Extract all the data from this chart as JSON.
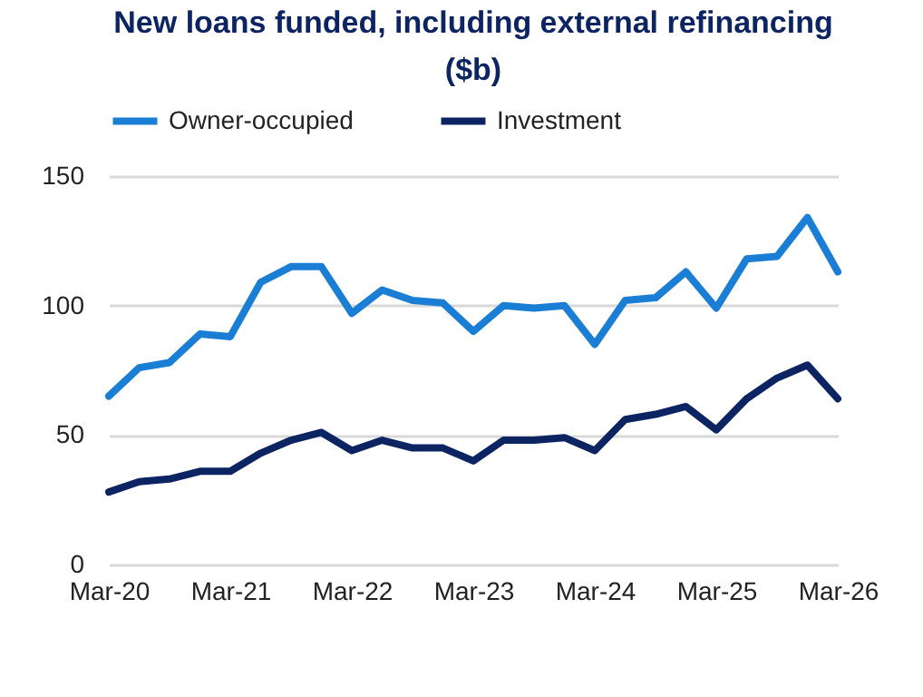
{
  "chart_data": {
    "type": "line",
    "title": "New loans funded, including external refinancing ($b)",
    "categories": [
      "Mar-20",
      null,
      null,
      null,
      "Mar-21",
      null,
      null,
      null,
      "Mar-22",
      null,
      null,
      null,
      "Mar-23",
      null,
      null,
      null,
      "Mar-24",
      null,
      null,
      null,
      "Mar-25",
      null,
      null,
      null,
      "Mar-26"
    ],
    "series": [
      {
        "name": "Owner-occupied",
        "color": "#1a7fd4",
        "values": [
          65,
          76,
          78,
          89,
          88,
          109,
          115,
          115,
          97,
          106,
          102,
          101,
          90,
          100,
          99,
          100,
          85,
          102,
          103,
          113,
          99,
          118,
          119,
          134,
          113
        ]
      },
      {
        "name": "Investment",
        "color": "#0d2463",
        "values": [
          28,
          32,
          33,
          36,
          36,
          43,
          48,
          51,
          44,
          48,
          45,
          45,
          40,
          48,
          48,
          49,
          44,
          56,
          58,
          61,
          52,
          64,
          72,
          77,
          64
        ]
      }
    ],
    "ylim": [
      0,
      150
    ],
    "yticks": [
      0,
      50,
      100,
      150
    ],
    "grid": "y",
    "legend": "top",
    "marker": "none",
    "line_style": "solid"
  }
}
